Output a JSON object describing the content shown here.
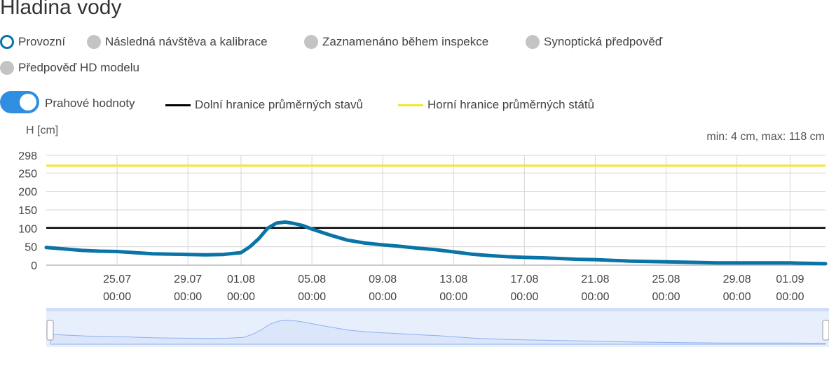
{
  "page": {
    "title": "Hladina vody"
  },
  "filters": [
    {
      "label": "Provozní",
      "active": true
    },
    {
      "label": "Následná návštěva a kalibrace",
      "active": false
    },
    {
      "label": "Zaznamenáno během inspekce",
      "active": false
    },
    {
      "label": "Synoptická předpověď",
      "active": false
    },
    {
      "label": "Předpověď HD modelu",
      "active": false
    }
  ],
  "thresholds": {
    "toggle_label": "Prahové hodnoty",
    "enabled": true,
    "lower": {
      "label": "Dolní hranice průměrných stavů",
      "value": 101,
      "color": "#000000"
    },
    "upper": {
      "label": "Horní hranice průměrných států",
      "value": 270,
      "color": "#f5e532"
    }
  },
  "summary": {
    "text": "min: 4 cm, max: 118 cm"
  },
  "chart_data": {
    "type": "line",
    "ylabel": "H [cm]",
    "yticks": [
      0,
      50,
      100,
      150,
      200,
      250,
      298
    ],
    "ylim": [
      0,
      298
    ],
    "xlim": [
      "2025-07-21",
      "2025-09-03"
    ],
    "xticks": [
      {
        "date": "2025-07-25",
        "day": "25.07",
        "time": "00:00"
      },
      {
        "date": "2025-07-29",
        "day": "29.07",
        "time": "00:00"
      },
      {
        "date": "2025-08-01",
        "day": "01.08",
        "time": "00:00"
      },
      {
        "date": "2025-08-05",
        "day": "05.08",
        "time": "00:00"
      },
      {
        "date": "2025-08-09",
        "day": "09.08",
        "time": "00:00"
      },
      {
        "date": "2025-08-13",
        "day": "13.08",
        "time": "00:00"
      },
      {
        "date": "2025-08-17",
        "day": "17.08",
        "time": "00:00"
      },
      {
        "date": "2025-08-21",
        "day": "21.08",
        "time": "00:00"
      },
      {
        "date": "2025-08-25",
        "day": "25.08",
        "time": "00:00"
      },
      {
        "date": "2025-08-29",
        "day": "29.08",
        "time": "00:00"
      },
      {
        "date": "2025-09-01",
        "day": "01.09",
        "time": "00:00"
      }
    ],
    "grid": true,
    "series": [
      {
        "name": "Provozní",
        "color": "#0a74a6",
        "points": [
          [
            "2025-07-21T00:00",
            48
          ],
          [
            "2025-07-22T00:00",
            44
          ],
          [
            "2025-07-23T00:00",
            40
          ],
          [
            "2025-07-24T00:00",
            38
          ],
          [
            "2025-07-25T00:00",
            37
          ],
          [
            "2025-07-26T00:00",
            34
          ],
          [
            "2025-07-27T00:00",
            31
          ],
          [
            "2025-07-28T00:00",
            30
          ],
          [
            "2025-07-29T00:00",
            29
          ],
          [
            "2025-07-30T00:00",
            28
          ],
          [
            "2025-07-31T00:00",
            29
          ],
          [
            "2025-08-01T00:00",
            34
          ],
          [
            "2025-08-01T12:00",
            50
          ],
          [
            "2025-08-02T00:00",
            72
          ],
          [
            "2025-08-02T12:00",
            100
          ],
          [
            "2025-08-03T00:00",
            114
          ],
          [
            "2025-08-03T12:00",
            117
          ],
          [
            "2025-08-04T00:00",
            113
          ],
          [
            "2025-08-04T12:00",
            107
          ],
          [
            "2025-08-05T00:00",
            98
          ],
          [
            "2025-08-06T00:00",
            82
          ],
          [
            "2025-08-07T00:00",
            68
          ],
          [
            "2025-08-08T00:00",
            60
          ],
          [
            "2025-08-09T00:00",
            55
          ],
          [
            "2025-08-10T00:00",
            51
          ],
          [
            "2025-08-11T00:00",
            46
          ],
          [
            "2025-08-12T00:00",
            42
          ],
          [
            "2025-08-13T00:00",
            36
          ],
          [
            "2025-08-14T00:00",
            30
          ],
          [
            "2025-08-15T00:00",
            26
          ],
          [
            "2025-08-16T00:00",
            23
          ],
          [
            "2025-08-17T00:00",
            21
          ],
          [
            "2025-08-18T00:00",
            20
          ],
          [
            "2025-08-19T00:00",
            18
          ],
          [
            "2025-08-20T00:00",
            16
          ],
          [
            "2025-08-21T00:00",
            15
          ],
          [
            "2025-08-22T00:00",
            13
          ],
          [
            "2025-08-23T00:00",
            11
          ],
          [
            "2025-08-24T00:00",
            10
          ],
          [
            "2025-08-25T00:00",
            9
          ],
          [
            "2025-08-26T00:00",
            8
          ],
          [
            "2025-08-27T00:00",
            7
          ],
          [
            "2025-08-28T00:00",
            6
          ],
          [
            "2025-08-29T00:00",
            6
          ],
          [
            "2025-08-30T00:00",
            6
          ],
          [
            "2025-08-31T00:00",
            6
          ],
          [
            "2025-09-01T00:00",
            6
          ],
          [
            "2025-09-02T00:00",
            5
          ],
          [
            "2025-09-03T00:00",
            4
          ]
        ]
      }
    ],
    "navigator": {
      "fill": "#dbe6fb",
      "line": "#8fb0ee",
      "handle_color": "#ffffff"
    }
  }
}
